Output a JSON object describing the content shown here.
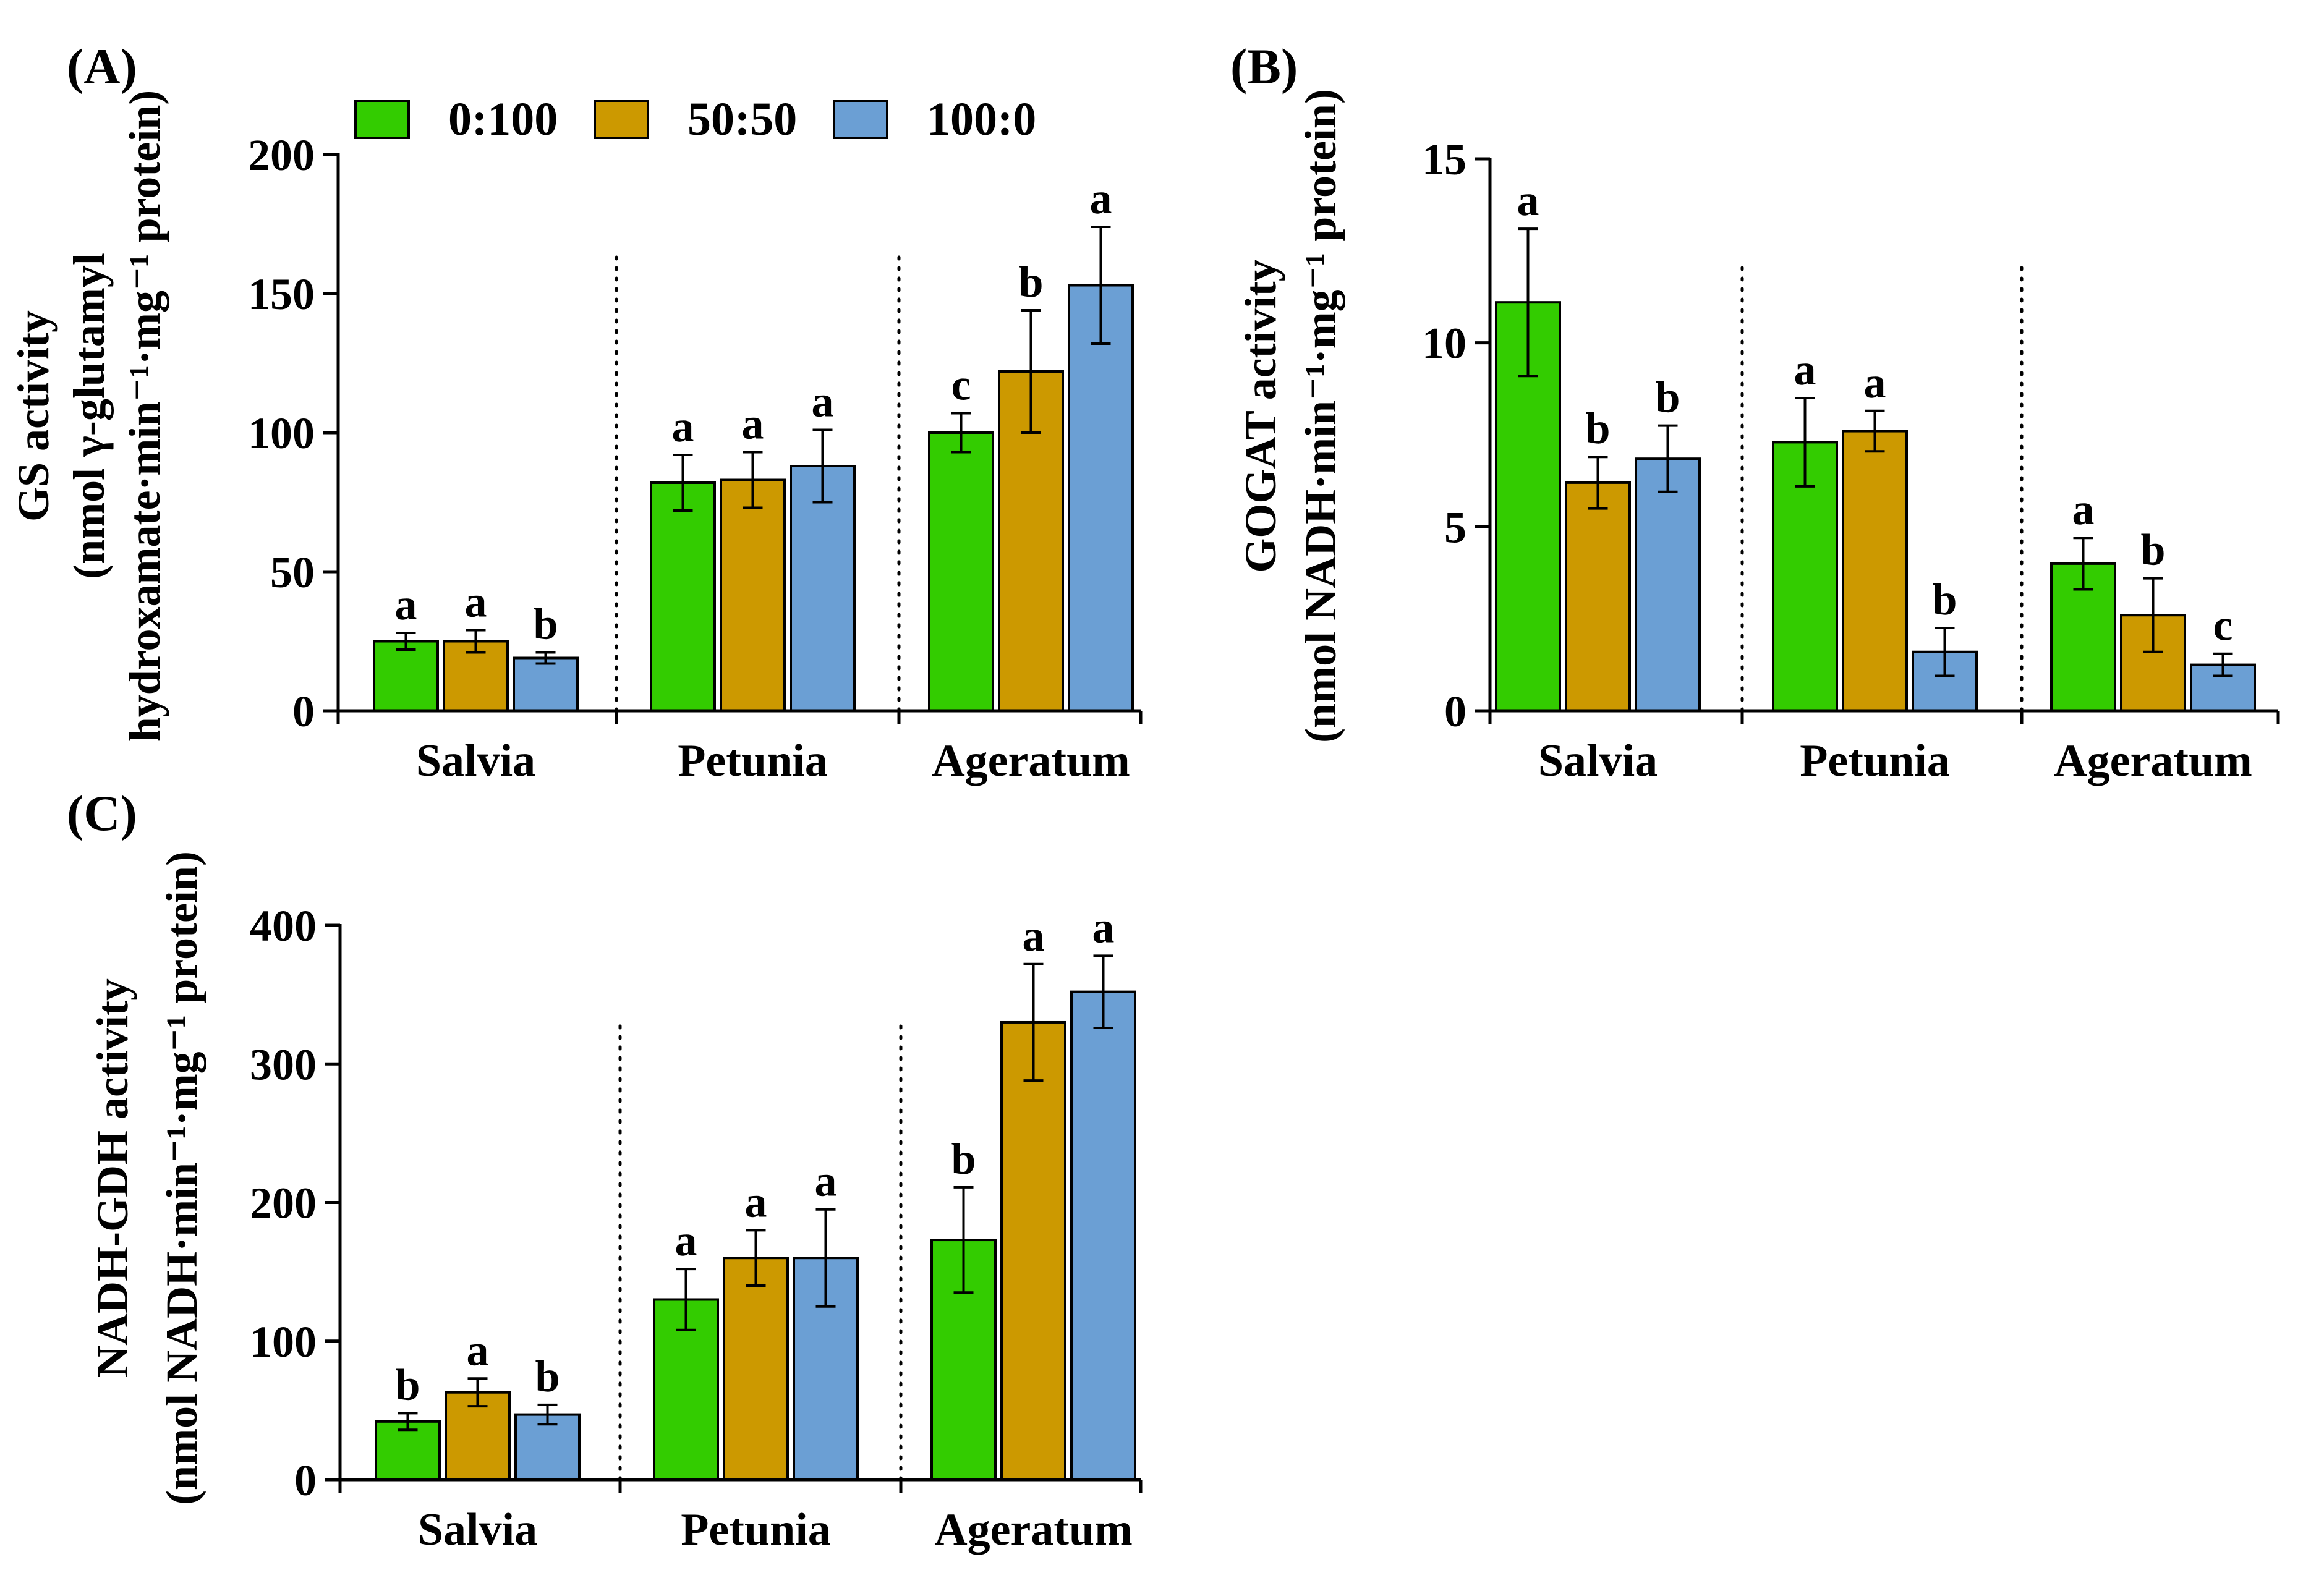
{
  "legend": [
    {
      "label": "0:100",
      "color": "#33cc00"
    },
    {
      "label": "50:50",
      "color": "#cc9900"
    },
    {
      "label": "100:0",
      "color": "#6b9fd4"
    }
  ],
  "chart_data": [
    {
      "type": "bar",
      "panel": "(A)",
      "ylabel_lines": [
        "GS activity",
        "(nmol γ-glutamyl",
        "hydroxamate·min⁻¹·mg⁻¹ protein)"
      ],
      "categories": [
        "Salvia",
        "Petunia",
        "Ageratum"
      ],
      "ylim": [
        0,
        200
      ],
      "yticks": [
        "0",
        "50",
        "100",
        "150",
        "200"
      ],
      "series": [
        {
          "name": "0:100",
          "values": [
            25,
            82,
            100
          ],
          "errors": [
            3,
            10,
            7
          ],
          "letters": [
            "a",
            "a",
            "c"
          ]
        },
        {
          "name": "50:50",
          "values": [
            25,
            83,
            122
          ],
          "errors": [
            4,
            10,
            22
          ],
          "letters": [
            "a",
            "a",
            "b"
          ]
        },
        {
          "name": "100:0",
          "values": [
            19,
            88,
            153
          ],
          "errors": [
            2,
            13,
            21
          ],
          "letters": [
            "b",
            "a",
            "a"
          ]
        }
      ]
    },
    {
      "type": "bar",
      "panel": "(B)",
      "ylabel_lines": [
        "GOGAT activity",
        "(nmol NADH·min⁻¹·mg⁻¹ protein)"
      ],
      "categories": [
        "Salvia",
        "Petunia",
        "Ageratum"
      ],
      "ylim": [
        0,
        15
      ],
      "yticks": [
        "0",
        "5",
        "10",
        "15"
      ],
      "series": [
        {
          "name": "0:100",
          "values": [
            11.1,
            7.3,
            4.0
          ],
          "errors": [
            2.0,
            1.2,
            0.7
          ],
          "letters": [
            "a",
            "a",
            "a"
          ]
        },
        {
          "name": "50:50",
          "values": [
            6.2,
            7.6,
            2.6
          ],
          "errors": [
            0.7,
            0.55,
            1.0
          ],
          "letters": [
            "b",
            "a",
            "b"
          ]
        },
        {
          "name": "100:0",
          "values": [
            6.85,
            1.6,
            1.25
          ],
          "errors": [
            0.9,
            0.65,
            0.3
          ],
          "letters": [
            "b",
            "b",
            "c"
          ]
        }
      ]
    },
    {
      "type": "bar",
      "panel": "(C)",
      "ylabel_lines": [
        "NADH-GDH activity",
        "(nmol NADH·min⁻¹·mg⁻¹ protein)"
      ],
      "categories": [
        "Salvia",
        "Petunia",
        "Ageratum"
      ],
      "ylim": [
        0,
        400
      ],
      "yticks": [
        "0",
        "100",
        "200",
        "300",
        "400"
      ],
      "series": [
        {
          "name": "0:100",
          "values": [
            42,
            130,
            173
          ],
          "errors": [
            6,
            22,
            38
          ],
          "letters": [
            "b",
            "a",
            "b"
          ]
        },
        {
          "name": "50:50",
          "values": [
            63,
            160,
            330
          ],
          "errors": [
            10,
            20,
            42
          ],
          "letters": [
            "a",
            "a",
            "a"
          ]
        },
        {
          "name": "100:0",
          "values": [
            47,
            160,
            352
          ],
          "errors": [
            7,
            35,
            26
          ],
          "letters": [
            "b",
            "a",
            "a"
          ]
        }
      ]
    }
  ]
}
